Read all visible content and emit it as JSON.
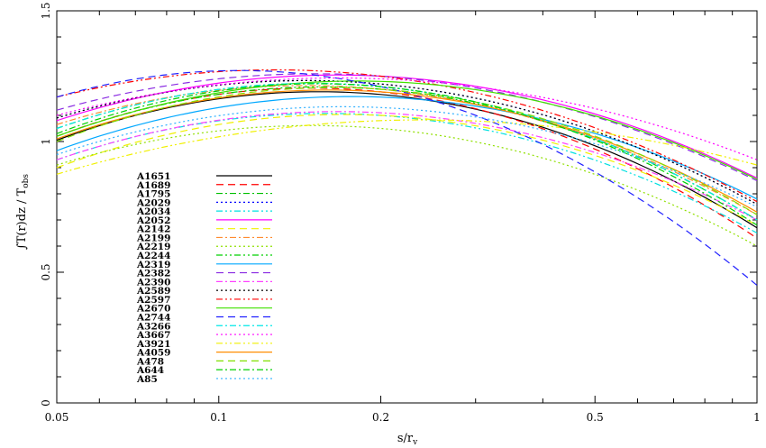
{
  "chart_data": {
    "type": "line",
    "title": "",
    "xlabel": "s/r",
    "xlabel_sub": "v",
    "ylabel": "∫T(r)dz / T",
    "ylabel_sub": "obs",
    "xscale": "log",
    "xlim": [
      0.05,
      1
    ],
    "ylim": [
      0,
      1.5
    ],
    "xticks": [
      0.05,
      0.1,
      0.2,
      0.5,
      1
    ],
    "xtick_labels": [
      "0.05",
      "0.1",
      "0.2",
      "0.5",
      "1"
    ],
    "yticks": [
      0,
      0.5,
      1,
      1.5
    ],
    "ytick_labels": [
      "0",
      "0.5",
      "1",
      "1.5"
    ],
    "legend_position": "left-center",
    "x": [
      0.05,
      0.2,
      1
    ],
    "series": [
      {
        "name": "A1651",
        "values": [
          1.005,
          1.18,
          0.67
        ],
        "color": "#000000",
        "dash": ""
      },
      {
        "name": "A1689",
        "values": [
          1.02,
          1.19,
          0.63
        ],
        "color": "#ff0000",
        "dash": "8,5"
      },
      {
        "name": "A1795",
        "values": [
          1.05,
          1.21,
          0.7
        ],
        "color": "#00c000",
        "dash": "7,3,2,3"
      },
      {
        "name": "A2029",
        "values": [
          1.09,
          1.22,
          0.76
        ],
        "color": "#0000ff",
        "dash": "2,3"
      },
      {
        "name": "A2034",
        "values": [
          0.93,
          1.1,
          0.65
        ],
        "color": "#00e0e0",
        "dash": "7,3,2,3,2,3"
      },
      {
        "name": "A2052",
        "values": [
          1.08,
          1.25,
          0.86
        ],
        "color": "#ff00ff",
        "dash": ""
      },
      {
        "name": "A2142",
        "values": [
          0.9,
          1.1,
          0.68
        ],
        "color": "#f0f000",
        "dash": "8,5"
      },
      {
        "name": "A2199",
        "values": [
          1.065,
          1.2,
          0.72
        ],
        "color": "#ff8c30",
        "dash": "7,3,2,3"
      },
      {
        "name": "A2219",
        "values": [
          0.91,
          1.05,
          0.6
        ],
        "color": "#90e000",
        "dash": "2,3"
      },
      {
        "name": "A2244",
        "values": [
          1.02,
          1.2,
          0.7
        ],
        "color": "#00d000",
        "dash": "7,3,2,3,2,3"
      },
      {
        "name": "A2319",
        "values": [
          0.965,
          1.17,
          0.78
        ],
        "color": "#00a8ff",
        "dash": ""
      },
      {
        "name": "A2382",
        "values": [
          1.12,
          1.25,
          0.85
        ],
        "color": "#8a2be2",
        "dash": "8,5"
      },
      {
        "name": "A2390",
        "values": [
          0.93,
          1.11,
          0.7
        ],
        "color": "#ff40ff",
        "dash": "7,3,2,3"
      },
      {
        "name": "A2589",
        "values": [
          1.09,
          1.22,
          0.76
        ],
        "color": "#000000",
        "dash": "2,3"
      },
      {
        "name": "A2597",
        "values": [
          1.17,
          1.25,
          0.77
        ],
        "color": "#ff0000",
        "dash": "7,3,2,3,2,3"
      },
      {
        "name": "A2670",
        "values": [
          1.02,
          1.23,
          0.855
        ],
        "color": "#40e000",
        "dash": ""
      },
      {
        "name": "A2744",
        "values": [
          1.17,
          1.21,
          0.45
        ],
        "color": "#2020ff",
        "dash": "8,5"
      },
      {
        "name": "A3266",
        "values": [
          1.05,
          1.21,
          0.7
        ],
        "color": "#00e8e8",
        "dash": "7,3,2,3"
      },
      {
        "name": "A3667",
        "values": [
          1.1,
          1.24,
          0.93
        ],
        "color": "#ff00ff",
        "dash": "2,3"
      },
      {
        "name": "A3921",
        "values": [
          0.875,
          1.08,
          0.91
        ],
        "color": "#f0f000",
        "dash": "7,3,2,3,2,3"
      },
      {
        "name": "A4059",
        "values": [
          1.01,
          1.19,
          0.73
        ],
        "color": "#ff8c00",
        "dash": ""
      },
      {
        "name": "A478",
        "values": [
          1.0,
          1.2,
          0.72
        ],
        "color": "#80e000",
        "dash": "8,5"
      },
      {
        "name": "A644",
        "values": [
          1.03,
          1.21,
          0.68
        ],
        "color": "#00d000",
        "dash": "7,3,2,3"
      },
      {
        "name": "A85",
        "values": [
          0.95,
          1.13,
          0.75
        ],
        "color": "#30b0ff",
        "dash": "2,3"
      }
    ]
  }
}
